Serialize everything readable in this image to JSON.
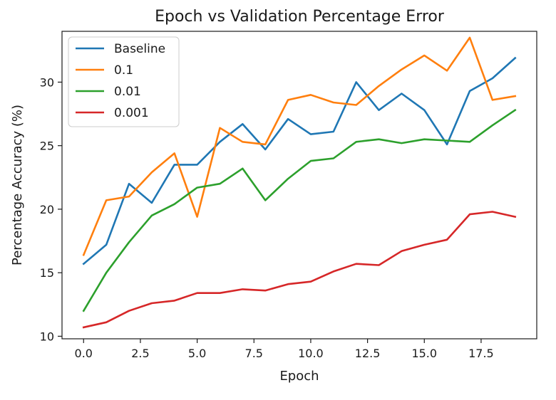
{
  "chart_data": {
    "type": "line",
    "title": "Epoch vs Validation Percentage Error",
    "xlabel": "Epoch",
    "ylabel": "Percentage Accuracy (%)",
    "xlim": [
      -0.95,
      19.95
    ],
    "ylim": [
      9.8,
      34.0
    ],
    "xticks": [
      0.0,
      2.5,
      5.0,
      7.5,
      10.0,
      12.5,
      15.0,
      17.5
    ],
    "xtick_labels": [
      "0.0",
      "2.5",
      "5.0",
      "7.5",
      "10.0",
      "12.5",
      "15.0",
      "17.5"
    ],
    "yticks": [
      10,
      15,
      20,
      25,
      30
    ],
    "ytick_labels": [
      "10",
      "15",
      "20",
      "25",
      "30"
    ],
    "grid": false,
    "legend_position": "top-left",
    "x": [
      0,
      1,
      2,
      3,
      4,
      5,
      6,
      7,
      8,
      9,
      10,
      11,
      12,
      13,
      14,
      15,
      16,
      17,
      18,
      19
    ],
    "series": [
      {
        "name": "Baseline",
        "color": "#1f77b4",
        "values": [
          15.7,
          17.2,
          22.0,
          20.5,
          23.5,
          23.5,
          25.3,
          26.7,
          24.7,
          27.1,
          25.9,
          26.1,
          30.0,
          27.8,
          29.1,
          27.8,
          25.1,
          29.3,
          30.3,
          31.9
        ]
      },
      {
        "name": "0.1",
        "color": "#ff7f0e",
        "values": [
          16.4,
          20.7,
          21.0,
          22.9,
          24.4,
          19.4,
          26.4,
          25.3,
          25.1,
          28.6,
          29.0,
          28.4,
          28.2,
          29.7,
          31.0,
          32.1,
          30.9,
          33.5,
          28.6,
          28.9
        ]
      },
      {
        "name": "0.01",
        "color": "#2ca02c",
        "values": [
          12.0,
          15.0,
          17.4,
          19.5,
          20.4,
          21.7,
          22.0,
          23.2,
          20.7,
          22.4,
          23.8,
          24.0,
          25.3,
          25.5,
          25.2,
          25.5,
          25.4,
          25.3,
          26.6,
          27.8
        ]
      },
      {
        "name": "0.001",
        "color": "#d62728",
        "values": [
          10.7,
          11.1,
          12.0,
          12.6,
          12.8,
          13.4,
          13.4,
          13.7,
          13.6,
          14.1,
          14.3,
          15.1,
          15.7,
          15.6,
          16.7,
          17.2,
          17.6,
          19.6,
          19.8,
          19.4
        ]
      }
    ]
  }
}
